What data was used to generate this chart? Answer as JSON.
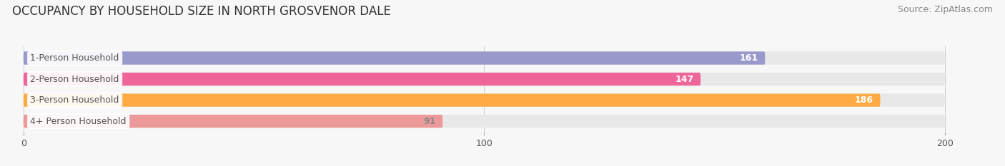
{
  "title": "OCCUPANCY BY HOUSEHOLD SIZE IN NORTH GROSVENOR DALE",
  "source": "Source: ZipAtlas.com",
  "categories": [
    "1-Person Household",
    "2-Person Household",
    "3-Person Household",
    "4+ Person Household"
  ],
  "values": [
    161,
    147,
    186,
    91
  ],
  "bar_colors": [
    "#9999cc",
    "#ee6699",
    "#ffaa44",
    "#ee9999"
  ],
  "value_colors": [
    "white",
    "white",
    "white",
    "#888888"
  ],
  "xlim": [
    0,
    200
  ],
  "xticks": [
    0,
    100,
    200
  ],
  "background_color": "#f7f7f7",
  "bar_bg_color": "#e8e8e8",
  "label_text_color": "#555555",
  "title_fontsize": 12,
  "source_fontsize": 9,
  "label_fontsize": 9,
  "value_fontsize": 9,
  "bar_height": 0.62
}
